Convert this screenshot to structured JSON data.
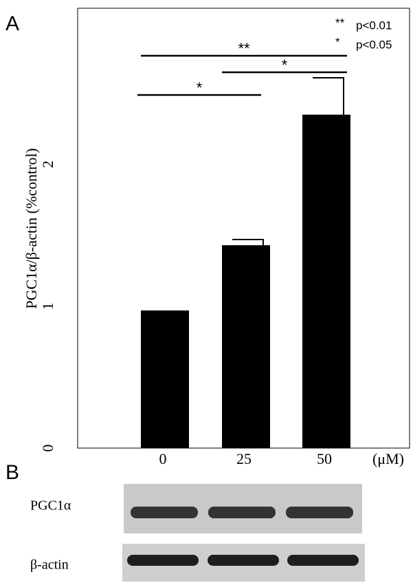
{
  "panel_labels": [
    "A",
    "B"
  ],
  "chart_data": {
    "type": "bar",
    "ylabel": "PGC1α/β-actin (%control)",
    "xunit": "(μM)",
    "categories": [
      "0",
      "25",
      "50"
    ],
    "values": [
      0.97,
      1.43,
      2.35
    ],
    "errors": [
      0,
      0.04,
      0.26
    ],
    "color": "#000000",
    "ylim": [
      0,
      3.1
    ],
    "yticks": [
      0,
      1,
      2
    ],
    "significance": [
      {
        "label": "**"
      },
      {
        "label": "*"
      },
      {
        "label": "*"
      }
    ],
    "legend": [
      {
        "symbol": "**",
        "text": "p<0.01"
      },
      {
        "symbol": "*",
        "text": "p<0.05"
      }
    ]
  },
  "blot": {
    "labels": [
      "PGC1α",
      "β-actin"
    ]
  }
}
